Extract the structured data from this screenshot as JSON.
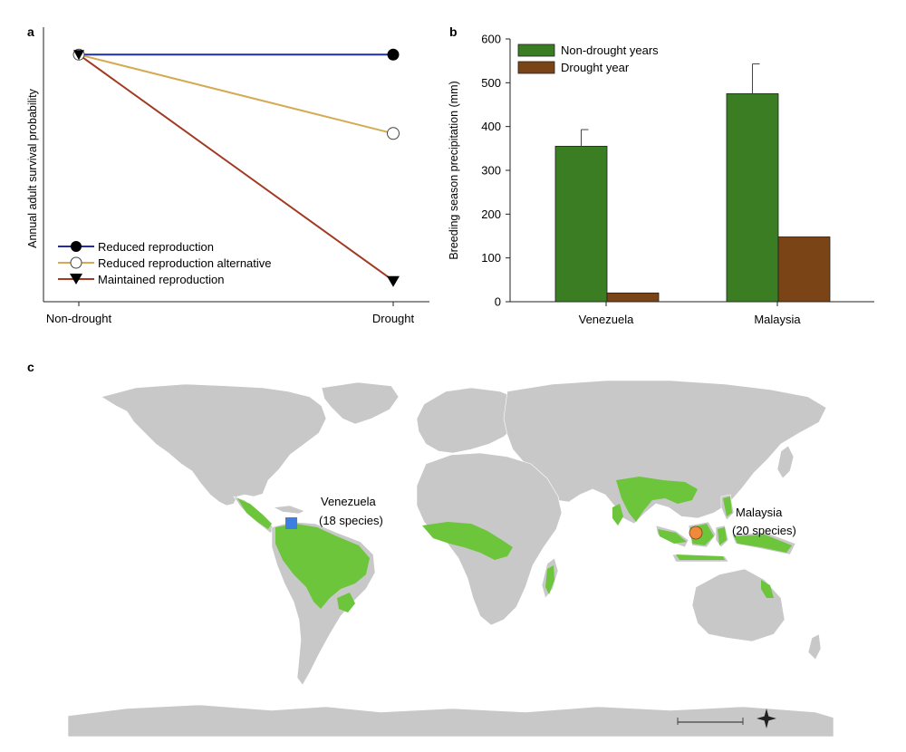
{
  "panels": {
    "a": "a",
    "b": "b",
    "c": "c"
  },
  "chart_data": [
    {
      "type": "line",
      "panel": "a",
      "ylabel": "Annual adult survival probability",
      "xlabel": "",
      "categories": [
        "Non-drought",
        "Drought"
      ],
      "ylim": [
        0,
        1
      ],
      "y_ticks_shown": false,
      "series": [
        {
          "name": "Reduced reproduction",
          "values": [
            0.93,
            0.93
          ],
          "color": "#1f2ea8",
          "marker_drought": "filled-circle"
        },
        {
          "name": "Reduced reproduction alternative",
          "values": [
            0.93,
            0.63
          ],
          "color": "#d4aa52",
          "marker_drought": "open-circle"
        },
        {
          "name": "Maintained reproduction",
          "values": [
            0.93,
            0.07
          ],
          "color": "#a13a22",
          "marker_drought": "filled-triangle-down"
        }
      ],
      "legend_position": "bottom-left"
    },
    {
      "type": "bar",
      "panel": "b",
      "ylabel": "Breeding season precipitation (mm)",
      "xlabel": "",
      "categories": [
        "Venezuela",
        "Malaysia"
      ],
      "ylim": [
        0,
        600
      ],
      "yticks": [
        "0",
        "100",
        "200",
        "300",
        "400",
        "500",
        "600"
      ],
      "series": [
        {
          "name": "Non-drought years",
          "values": [
            355,
            475
          ],
          "errors": [
            38,
            68
          ],
          "color": "#3a7d23"
        },
        {
          "name": "Drought year",
          "values": [
            20,
            148
          ],
          "color": "#7a4416"
        }
      ],
      "legend_position": "top-left"
    }
  ],
  "map": {
    "panel": "c",
    "ocean_color": "#ffffff",
    "land_color": "#c8c8c8",
    "highlight_color": "#6cc53a",
    "sites": [
      {
        "name": "Venezuela",
        "label_line1": "Venezuela",
        "label_line2": "(18 species)",
        "marker": "square",
        "color": "#3d7fe0",
        "lon": -66,
        "lat": 7
      },
      {
        "name": "Malaysia",
        "label_line1": "Malaysia",
        "label_line2": "(20 species)",
        "marker": "circle",
        "color": "#ef8a3c",
        "lon": 114,
        "lat": 2
      }
    ]
  }
}
